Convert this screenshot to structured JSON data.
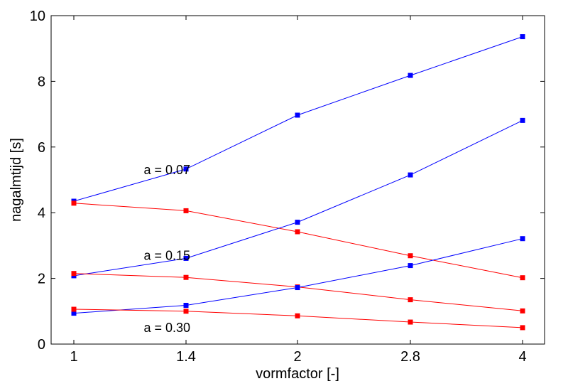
{
  "chart_data": {
    "type": "line",
    "xlabel": "vormfactor [-]",
    "ylabel": "nagalmtijd [s]",
    "categories": [
      "1",
      "1.4",
      "2",
      "2.8",
      "4"
    ],
    "xlim": [
      1,
      4
    ],
    "ylim": [
      0,
      10
    ],
    "yticks": [
      0,
      2,
      4,
      6,
      8,
      10
    ],
    "grid": false,
    "series": [
      {
        "color": "#0000ff",
        "group": "a = 0.07",
        "values": [
          4.35,
          5.33,
          6.97,
          8.18,
          9.36
        ]
      },
      {
        "color": "#ff0000",
        "group": "a = 0.07",
        "values": [
          4.29,
          4.06,
          3.42,
          2.69,
          2.02
        ]
      },
      {
        "color": "#0000ff",
        "group": "a = 0.15",
        "values": [
          2.08,
          2.61,
          3.71,
          5.15,
          6.81
        ]
      },
      {
        "color": "#ff0000",
        "group": "a = 0.15",
        "values": [
          2.15,
          2.03,
          1.74,
          1.35,
          1.01
        ]
      },
      {
        "color": "#0000ff",
        "group": "a = 0.30",
        "values": [
          0.94,
          1.18,
          1.72,
          2.39,
          3.21
        ]
      },
      {
        "color": "#ff0000",
        "group": "a = 0.30",
        "values": [
          1.06,
          1.0,
          0.86,
          0.67,
          0.5
        ]
      }
    ],
    "annotations": [
      {
        "text": "a = 0.07",
        "x": 1.3,
        "y": 5.3
      },
      {
        "text": "a = 0.15",
        "x": 1.3,
        "y": 2.7
      },
      {
        "text": "a = 0.30",
        "x": 1.3,
        "y": 0.5
      }
    ]
  }
}
